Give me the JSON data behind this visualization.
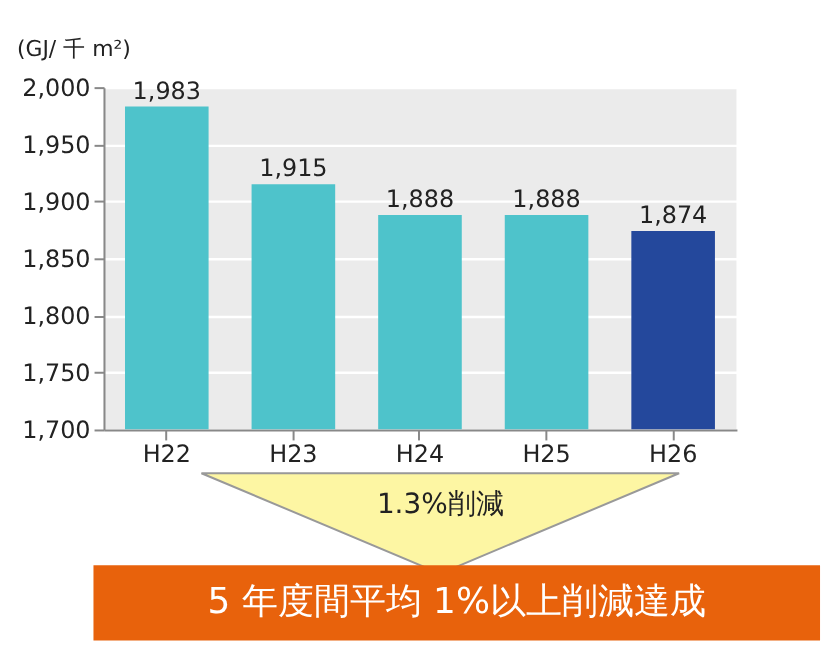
{
  "chart_data": {
    "type": "bar",
    "ylabel": "(GJ/ 千 m²)",
    "categories": [
      "H22",
      "H23",
      "H24",
      "H25",
      "H26"
    ],
    "values": [
      1983,
      1915,
      1888,
      1888,
      1874
    ],
    "colors": [
      "#4ec3cb",
      "#4ec3cb",
      "#4ec3cb",
      "#4ec3cb",
      "#24489c"
    ],
    "ylim": [
      1700,
      2000
    ],
    "yticks": [
      {
        "value": 1700,
        "label": "1,700"
      },
      {
        "value": 1750,
        "label": "1,750"
      },
      {
        "value": 1800,
        "label": "1,800"
      },
      {
        "value": 1850,
        "label": "1,850"
      },
      {
        "value": 1900,
        "label": "1,900"
      },
      {
        "value": 1950,
        "label": "1,950"
      },
      {
        "value": 2000,
        "label": "2,000"
      }
    ],
    "grid": "y",
    "value_labels": [
      "1,983",
      "1,915",
      "1,888",
      "1,888",
      "1,874"
    ],
    "annotations": [
      "1.3%削減",
      "5 年度間平均 1%以上削減達成"
    ]
  }
}
